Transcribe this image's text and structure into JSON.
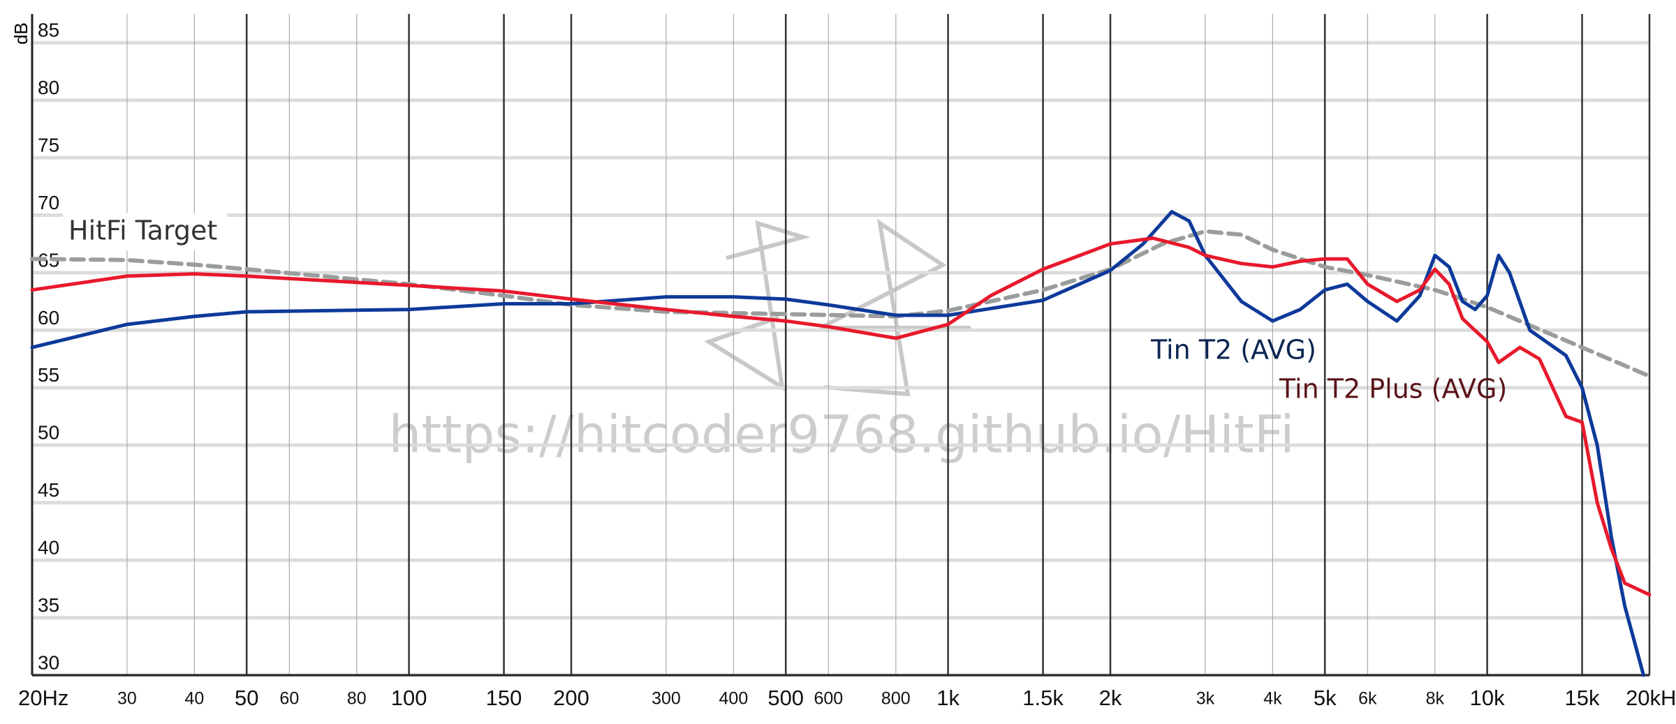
{
  "chart_data": {
    "type": "line",
    "y_label": "dB",
    "watermark": "https://hitcoder9768.github.io/HitFi",
    "log_x": true,
    "grid": true,
    "xlim": [
      20,
      20000
    ],
    "ylim": [
      30,
      87.5
    ],
    "yticks": [
      30,
      35,
      40,
      45,
      50,
      55,
      60,
      65,
      70,
      75,
      80,
      85
    ],
    "xticks": [
      {
        "value": 20,
        "label": "20Hz"
      },
      30,
      40,
      50,
      60,
      80,
      100,
      150,
      200,
      300,
      400,
      500,
      600,
      800,
      {
        "value": 1000,
        "label": "1k"
      },
      {
        "value": 1500,
        "label": "1.5k"
      },
      {
        "value": 2000,
        "label": "2k"
      },
      {
        "value": 3000,
        "label": "3k"
      },
      {
        "value": 4000,
        "label": "4k"
      },
      {
        "value": 5000,
        "label": "5k"
      },
      {
        "value": 6000,
        "label": "6k"
      },
      {
        "value": 8000,
        "label": "8k"
      },
      {
        "value": 10000,
        "label": "10k"
      },
      {
        "value": 15000,
        "label": "15k"
      },
      {
        "value": 20000,
        "label": "20kHz"
      }
    ],
    "series": [
      {
        "name": "HitFi Target",
        "color": "#999e9c",
        "label_color": "#333333",
        "dashed": true,
        "x": [
          20,
          30,
          40,
          50,
          100,
          150,
          200,
          300,
          500,
          800,
          1000,
          1500,
          2000,
          2500,
          3000,
          3500,
          4000,
          5000,
          6000,
          8000,
          10000,
          15000,
          20000
        ],
        "values": [
          66.2,
          66.1,
          65.7,
          65.3,
          64,
          63,
          62.2,
          61.6,
          61.4,
          61.2,
          61.7,
          63.5,
          65.3,
          67.5,
          68.6,
          68.3,
          67,
          65.5,
          64.8,
          63.5,
          62,
          58.5,
          56
        ]
      },
      {
        "name": "Tin T2 (AVG)",
        "color": "#0d3a9a",
        "label_color": "#0b2550",
        "dashed": false,
        "x": [
          20,
          30,
          40,
          50,
          100,
          150,
          200,
          300,
          400,
          500,
          600,
          800,
          1000,
          1500,
          2000,
          2300,
          2600,
          2800,
          3000,
          3500,
          4000,
          4500,
          5000,
          5500,
          6000,
          6800,
          7500,
          8000,
          8500,
          9000,
          9500,
          10000,
          10500,
          11000,
          12000,
          14000,
          15000,
          16000,
          17000,
          18000,
          19500
        ],
        "values": [
          58.5,
          60.5,
          61.2,
          61.6,
          61.8,
          62.3,
          62.3,
          62.9,
          62.9,
          62.7,
          62.2,
          61.3,
          61.3,
          62.6,
          65.2,
          67.5,
          70.3,
          69.5,
          66.5,
          62.5,
          60.8,
          61.8,
          63.5,
          64,
          62.5,
          60.8,
          63,
          66.5,
          65.5,
          62.5,
          61.8,
          63,
          66.5,
          65,
          60,
          57.8,
          55,
          50,
          42,
          36,
          30
        ]
      },
      {
        "name": "Tin T2 Plus (AVG)",
        "color": "#e8192c",
        "label_color": "#5a1418",
        "dashed": false,
        "x": [
          20,
          30,
          40,
          50,
          100,
          150,
          200,
          300,
          400,
          500,
          600,
          800,
          1000,
          1200,
          1500,
          2000,
          2400,
          2800,
          3000,
          3500,
          4000,
          4500,
          5000,
          5500,
          6000,
          6800,
          7500,
          8000,
          8500,
          9000,
          10000,
          10500,
          11500,
          12500,
          14000,
          15000,
          16000,
          17000,
          18000,
          20000
        ],
        "values": [
          63.5,
          64.7,
          64.9,
          64.7,
          63.9,
          63.4,
          62.7,
          61.8,
          61.2,
          60.8,
          60.3,
          59.3,
          60.5,
          63,
          65.3,
          67.5,
          68,
          67.2,
          66.5,
          65.8,
          65.5,
          66,
          66.2,
          66.2,
          64,
          62.5,
          63.5,
          65.3,
          64,
          61,
          59,
          57.2,
          58.5,
          57.5,
          52.5,
          52,
          45,
          41,
          38,
          37
        ]
      }
    ]
  }
}
